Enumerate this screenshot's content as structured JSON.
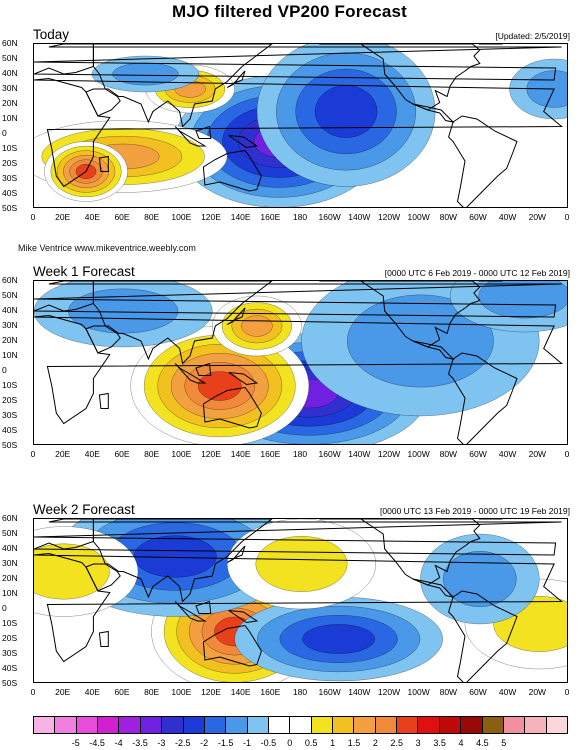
{
  "title": "MJO filtered VP200 Forecast",
  "credit": "Mike Ventrice www.mikeventrice.weebly.com",
  "lat_labels": [
    "60N",
    "50N",
    "40N",
    "30N",
    "20N",
    "10N",
    "0",
    "10S",
    "20S",
    "30S",
    "40S",
    "50S"
  ],
  "lon_labels": [
    "0",
    "20E",
    "40E",
    "60E",
    "80E",
    "100E",
    "120E",
    "140E",
    "160E",
    "180",
    "160W",
    "140W",
    "120W",
    "100W",
    "80W",
    "60W",
    "40W",
    "20W",
    "0"
  ],
  "panels": [
    {
      "title": "Today",
      "note": "[Updated: 2/5/2019]",
      "blobs": [
        {
          "lon": 165,
          "lat": -5,
          "rx": 35,
          "ry": 22,
          "level": -3
        },
        {
          "lon": 210,
          "lat": 15,
          "rx": 30,
          "ry": 25,
          "level": -2
        },
        {
          "lon": 60,
          "lat": -15,
          "rx": 35,
          "ry": 12,
          "level": 2
        },
        {
          "lon": 35,
          "lat": -25,
          "rx": 14,
          "ry": 10,
          "level": 3
        },
        {
          "lon": 105,
          "lat": 30,
          "rx": 15,
          "ry": 8,
          "level": 2
        },
        {
          "lon": 75,
          "lat": 40,
          "rx": 18,
          "ry": 6,
          "level": -1
        },
        {
          "lon": 350,
          "lat": 30,
          "rx": 15,
          "ry": 10,
          "level": -1
        }
      ]
    },
    {
      "title": "Week 1 Forecast",
      "note": "[0000 UTC 6 Feb 2019 - 0000 UTC 12 Feb 2019]",
      "blobs": [
        {
          "lon": 185,
          "lat": -15,
          "rx": 40,
          "ry": 20,
          "level": -3
        },
        {
          "lon": 125,
          "lat": -10,
          "rx": 30,
          "ry": 20,
          "level": 3
        },
        {
          "lon": 150,
          "lat": 30,
          "rx": 15,
          "ry": 10,
          "level": 2
        },
        {
          "lon": 60,
          "lat": 40,
          "rx": 30,
          "ry": 12,
          "level": -1
        },
        {
          "lon": 260,
          "lat": 20,
          "rx": 40,
          "ry": 25,
          "level": -1
        },
        {
          "lon": 330,
          "lat": 50,
          "rx": 25,
          "ry": 12,
          "level": -1
        }
      ]
    },
    {
      "title": "Week 2 Forecast",
      "note": "[0000 UTC 13 Feb 2019 - 0000 UTC 19 Feb 2019]",
      "blobs": [
        {
          "lon": 135,
          "lat": -15,
          "rx": 28,
          "ry": 20,
          "level": 3
        },
        {
          "lon": 205,
          "lat": -20,
          "rx": 35,
          "ry": 14,
          "level": -2
        },
        {
          "lon": 95,
          "lat": 35,
          "rx": 40,
          "ry": 20,
          "level": -2
        },
        {
          "lon": 180,
          "lat": 30,
          "rx": 25,
          "ry": 15,
          "level": 1
        },
        {
          "lon": 20,
          "lat": 25,
          "rx": 25,
          "ry": 15,
          "level": 1
        },
        {
          "lon": 340,
          "lat": -10,
          "rx": 25,
          "ry": 15,
          "level": 1
        },
        {
          "lon": 300,
          "lat": 20,
          "rx": 20,
          "ry": 15,
          "level": -1
        }
      ]
    }
  ],
  "colorbar": {
    "colors": [
      "#f7b3e8",
      "#f27fe0",
      "#e84ddb",
      "#d11fd1",
      "#a020e0",
      "#7020e0",
      "#3030d0",
      "#1a3bd6",
      "#2a67e3",
      "#4a98e8",
      "#7fc3f0",
      "#ffffff",
      "#ffffff",
      "#f2e21f",
      "#f2c020",
      "#f2a040",
      "#f08a3a",
      "#e8401a",
      "#e01010",
      "#c00a0a",
      "#9a0808",
      "#8a6010",
      "#f28fa0",
      "#f7b3bc",
      "#fbd6dc"
    ],
    "labels": [
      "-5",
      "-4.5",
      "-4",
      "-3.5",
      "-3",
      "-2.5",
      "-2",
      "-1.5",
      "-1",
      "-0.5",
      "0",
      "0.5",
      "1",
      "1.5",
      "2",
      "2.5",
      "3",
      "3.5",
      "4",
      "4.5",
      "5"
    ]
  }
}
